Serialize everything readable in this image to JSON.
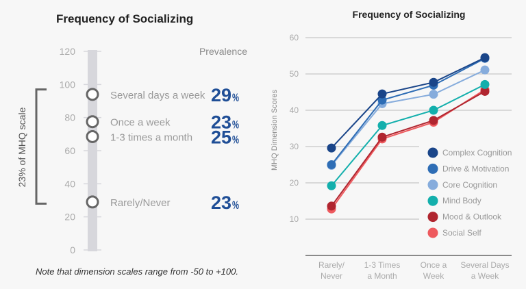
{
  "left": {
    "title": "Frequency of Socializing",
    "prevalence_header": "Prevalence",
    "bracket_label": "23% of MHQ scale",
    "note": "Note that dimension scales range from -50 to +100."
  },
  "chart_data": [
    {
      "type": "scatter",
      "title": "Frequency of Socializing",
      "ylim": [
        0,
        120
      ],
      "yticks": [
        "0",
        "20",
        "40",
        "60",
        "80",
        "100",
        "120"
      ],
      "bracket_range": [
        28,
        97
      ],
      "points": [
        {
          "label": "Several days a week",
          "value": 94,
          "prevalence": "29",
          "unit": "%"
        },
        {
          "label": "Once a week",
          "value": 77.5,
          "prevalence": "23",
          "unit": "%"
        },
        {
          "label": "1-3 times a month",
          "value": 68.5,
          "prevalence": "25",
          "unit": "%"
        },
        {
          "label": "Rarely/Never",
          "value": 29,
          "prevalence": "23",
          "unit": "%"
        }
      ]
    },
    {
      "type": "line",
      "title": "Frequency of Socializing",
      "ylabel": "MHQ Dimension Scores",
      "xlabel": "",
      "ylim": [
        0,
        60
      ],
      "yticks": [
        "10",
        "20",
        "30",
        "40",
        "50",
        "60"
      ],
      "grid": true,
      "legend": "bottom-right",
      "categories": [
        [
          "Rarely/",
          "Never"
        ],
        [
          "1-3 Times",
          "a Month"
        ],
        [
          "Once a",
          "Week"
        ],
        [
          "Several Days",
          "a Week"
        ]
      ],
      "series": [
        {
          "name": "Complex Cognition",
          "color": "#1a4589",
          "values": [
            29.6,
            44.5,
            47.7,
            54.5
          ]
        },
        {
          "name": "Drive & Motivation",
          "color": "#2e6db5",
          "values": [
            25,
            42.8,
            46.9,
            54.3
          ]
        },
        {
          "name": "Core Cognition",
          "color": "#86acdc",
          "values": [
            24.8,
            41.8,
            44.4,
            51.1
          ]
        },
        {
          "name": "Mind Body",
          "color": "#13afac",
          "values": [
            19.2,
            35.8,
            40,
            47.1
          ]
        },
        {
          "name": "Mood & Outlook",
          "color": "#b0252f",
          "values": [
            13.6,
            32.6,
            37.2,
            45.2
          ]
        },
        {
          "name": "Social Self",
          "color": "#ee5a5e",
          "values": [
            12.8,
            32.1,
            36.7,
            45.7
          ]
        }
      ]
    }
  ]
}
